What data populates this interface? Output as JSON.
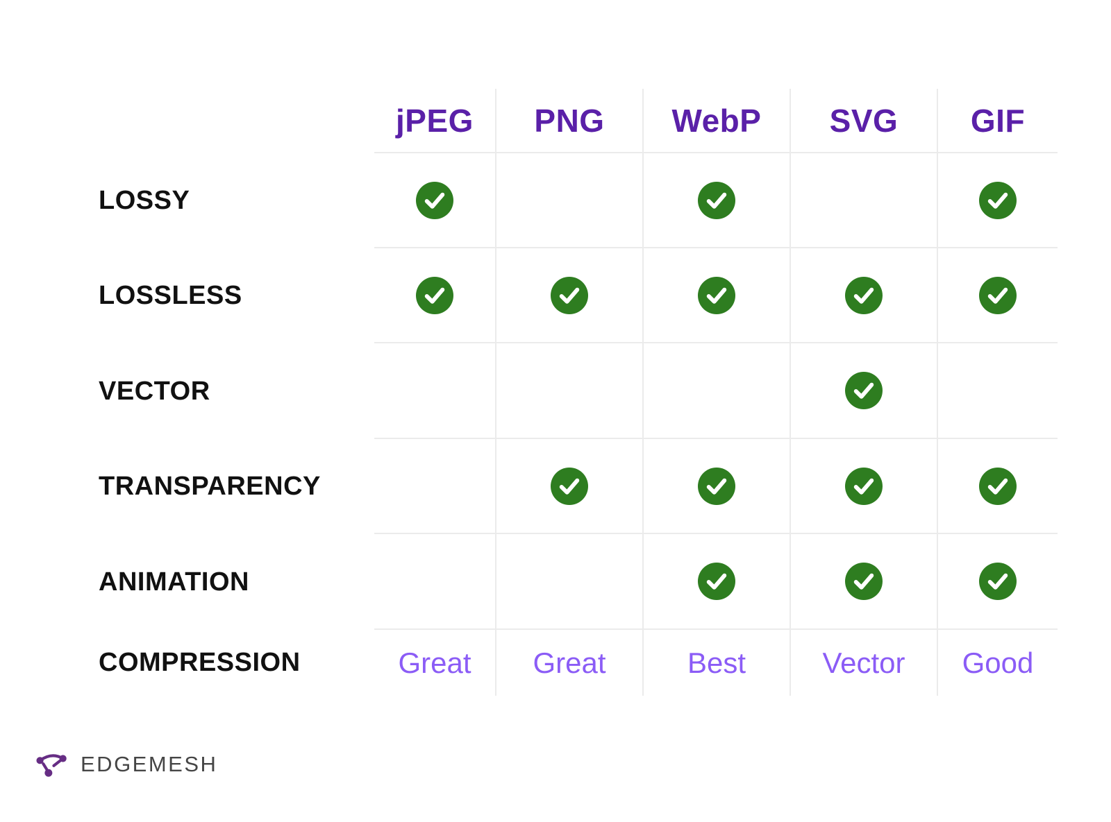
{
  "chart_data": {
    "type": "table",
    "title": "",
    "columns": [
      "jPEG",
      "PNG",
      "WebP",
      "SVG",
      "GIF"
    ],
    "rows": [
      {
        "label": "LOSSY",
        "kind": "checks",
        "values": [
          true,
          false,
          true,
          false,
          true
        ]
      },
      {
        "label": "LOSSLESS",
        "kind": "checks",
        "values": [
          true,
          true,
          true,
          true,
          true
        ]
      },
      {
        "label": "VECTOR",
        "kind": "checks",
        "values": [
          false,
          false,
          false,
          true,
          false
        ]
      },
      {
        "label": "TRANSPARENCY",
        "kind": "checks",
        "values": [
          false,
          true,
          true,
          true,
          true
        ]
      },
      {
        "label": "ANIMATION",
        "kind": "checks",
        "values": [
          false,
          false,
          true,
          true,
          true
        ]
      },
      {
        "label": "COMPRESSION",
        "kind": "text",
        "values": [
          "Great",
          "Great",
          "Best",
          "Vector",
          "Good"
        ]
      }
    ],
    "check_symbol": "green-circle-checkmark",
    "legend_position": "none",
    "grid": "light-gray-lines"
  },
  "footer": {
    "brand": "EDGEMESH",
    "logo_icon": "edgemesh-mesh-logo"
  },
  "colors": {
    "header_purple": "#5a20a8",
    "value_purple": "#8b5cf6",
    "check_green": "#2e7d20",
    "grid_line": "#ebebeb",
    "label_black": "#111111",
    "brand_gray": "#454545",
    "logo_purple": "#662d84"
  }
}
